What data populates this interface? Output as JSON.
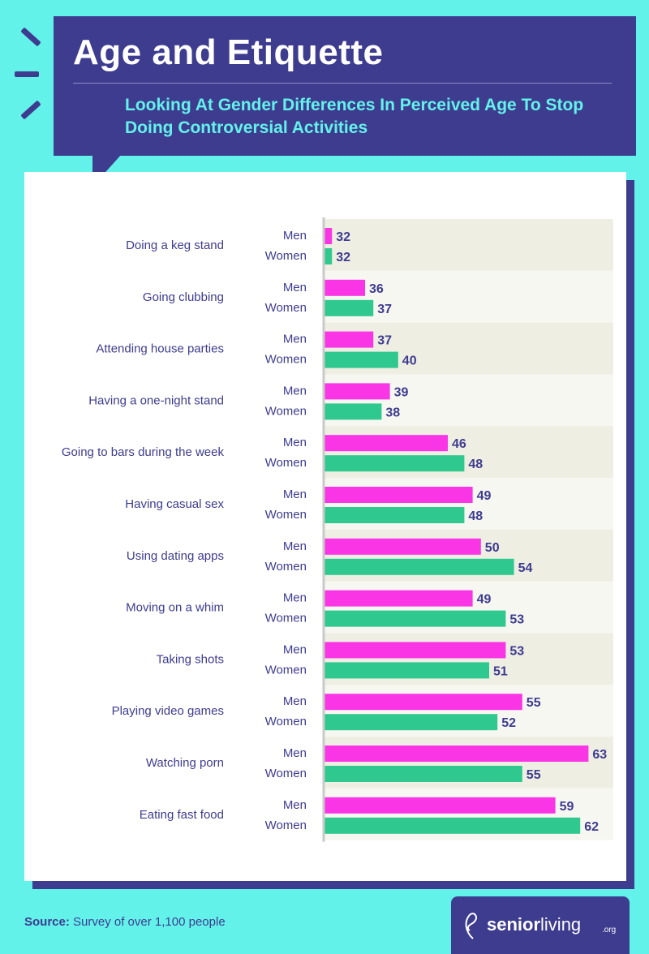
{
  "header": {
    "title": "Age and Etiquette",
    "subtitle": "Looking At Gender Differences In Perceived Age To Stop Doing Controversial Activities"
  },
  "footer": {
    "source_label": "Source:",
    "source_text": "Survey of over 1,100 people",
    "brand_name_bold": "senior",
    "brand_name_light": "living",
    "brand_suffix": ".org"
  },
  "colors": {
    "banner": "#3e3c8f",
    "background": "#63f2ea",
    "men_bar": "#f935e6",
    "women_bar": "#2fc88f",
    "value_label": "#3e3c8f",
    "row_band_dark": "#eeeee3",
    "row_band_light": "#f7f7f1"
  },
  "chart_data": {
    "type": "bar",
    "orientation": "horizontal",
    "categories": [
      "Doing a keg stand",
      "Going clubbing",
      "Attending house parties",
      "Having a one-night stand",
      "Going to bars during the week",
      "Having casual sex",
      "Using dating apps",
      "Moving on a whim",
      "Taking shots",
      "Playing video games",
      "Watching porn",
      "Eating fast food"
    ],
    "series": [
      {
        "name": "Men",
        "color": "#f935e6",
        "values": [
          32,
          36,
          37,
          39,
          46,
          49,
          50,
          49,
          53,
          55,
          63,
          59
        ]
      },
      {
        "name": "Women",
        "color": "#2fc88f",
        "values": [
          32,
          37,
          40,
          38,
          48,
          48,
          54,
          53,
          51,
          52,
          55,
          62
        ]
      }
    ],
    "xlim": [
      31,
      66
    ],
    "grid": false,
    "legend": "none"
  }
}
